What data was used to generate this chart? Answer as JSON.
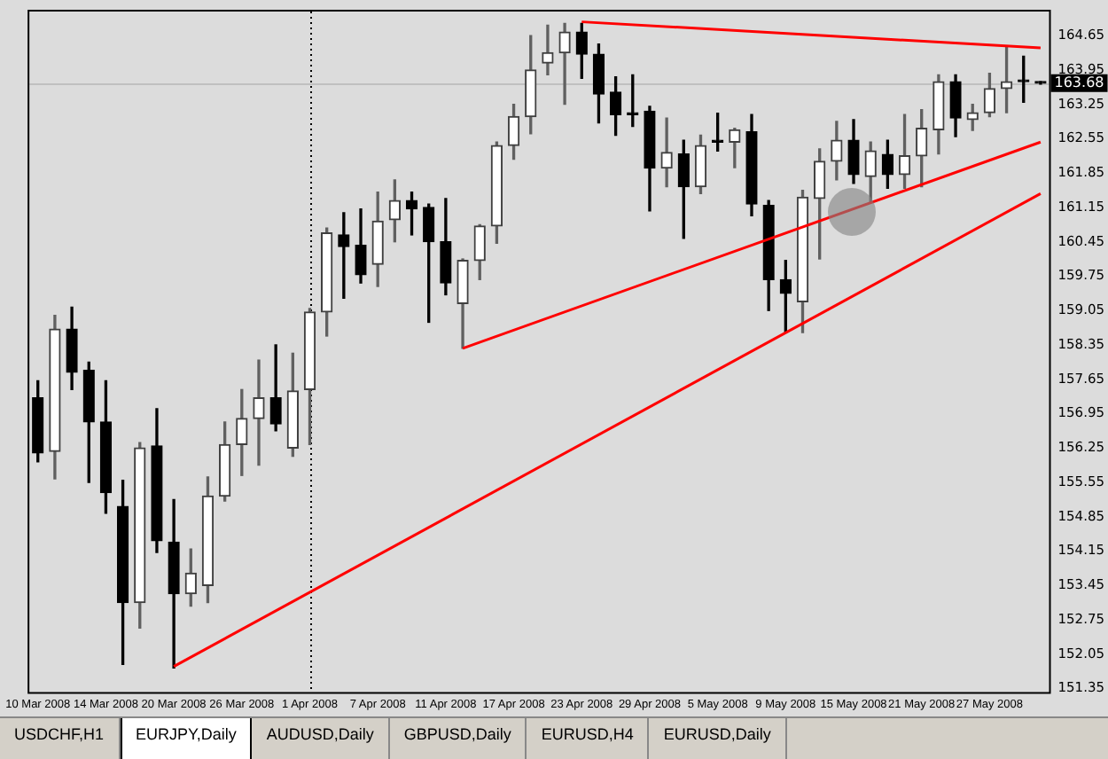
{
  "chart_data": {
    "type": "candlestick",
    "categories": [
      "10 Mar 2008",
      null,
      null,
      null,
      "14 Mar 2008",
      null,
      null,
      null,
      "20 Mar 2008",
      null,
      null,
      null,
      "26 Mar 2008",
      null,
      null,
      null,
      "1 Apr 2008",
      null,
      null,
      null,
      "7 Apr 2008",
      null,
      null,
      null,
      "11 Apr 2008",
      null,
      null,
      null,
      "17 Apr 2008",
      null,
      null,
      null,
      "23 Apr 2008",
      null,
      null,
      null,
      "29 Apr 2008",
      null,
      null,
      null,
      "5 May 2008",
      null,
      null,
      null,
      "9 May 2008",
      null,
      null,
      null,
      "15 May 2008",
      null,
      null,
      null,
      "21 May 2008",
      null,
      null,
      null,
      "27 May 2008",
      null,
      null,
      null
    ],
    "ohlc": [
      [
        157.27,
        157.62,
        155.97,
        156.15
      ],
      [
        156.18,
        158.95,
        155.62,
        158.67
      ],
      [
        158.67,
        159.12,
        157.44,
        157.79
      ],
      [
        157.83,
        158.0,
        155.55,
        156.78
      ],
      [
        156.78,
        157.62,
        154.92,
        155.34
      ],
      [
        155.06,
        155.59,
        151.84,
        153.1
      ],
      [
        153.1,
        156.36,
        152.58,
        156.25
      ],
      [
        156.29,
        157.05,
        154.12,
        154.36
      ],
      [
        154.33,
        155.2,
        151.77,
        153.28
      ],
      [
        153.28,
        154.19,
        153.03,
        153.7
      ],
      [
        153.45,
        155.66,
        153.1,
        155.27
      ],
      [
        155.27,
        156.78,
        155.17,
        156.32
      ],
      [
        156.32,
        157.44,
        155.69,
        156.85
      ],
      [
        156.85,
        158.04,
        155.9,
        157.27
      ],
      [
        157.27,
        158.35,
        156.6,
        156.74
      ],
      [
        156.25,
        158.18,
        156.08,
        157.41
      ],
      [
        157.44,
        159.09,
        156.32,
        159.02
      ],
      [
        159.02,
        160.73,
        158.53,
        160.63
      ],
      [
        160.59,
        161.04,
        159.3,
        160.35
      ],
      [
        160.38,
        161.12,
        159.61,
        159.78
      ],
      [
        159.99,
        161.46,
        159.54,
        160.87
      ],
      [
        160.9,
        161.71,
        160.45,
        161.29
      ],
      [
        161.29,
        161.46,
        160.59,
        161.12
      ],
      [
        161.15,
        161.22,
        158.81,
        160.45
      ],
      [
        160.45,
        161.33,
        159.37,
        159.61
      ],
      [
        159.19,
        160.1,
        158.28,
        160.07
      ],
      [
        160.07,
        160.8,
        159.68,
        160.77
      ],
      [
        160.77,
        162.48,
        160.42,
        162.41
      ],
      [
        162.41,
        163.25,
        162.13,
        163.0
      ],
      [
        163.0,
        164.65,
        162.65,
        163.95
      ],
      [
        164.09,
        164.86,
        163.85,
        164.3
      ],
      [
        164.3,
        164.9,
        163.25,
        164.72
      ],
      [
        164.72,
        164.9,
        163.78,
        164.27
      ],
      [
        164.27,
        164.48,
        162.87,
        163.46
      ],
      [
        163.5,
        163.81,
        162.62,
        163.04
      ],
      [
        163.04,
        163.85,
        162.8,
        163.04
      ],
      [
        163.11,
        163.21,
        161.08,
        161.95
      ],
      [
        161.95,
        162.97,
        161.57,
        162.27
      ],
      [
        162.24,
        162.52,
        160.52,
        161.57
      ],
      [
        161.57,
        162.62,
        161.43,
        162.41
      ],
      [
        162.48,
        163.07,
        162.3,
        162.48
      ],
      [
        162.48,
        162.76,
        161.96,
        162.73
      ],
      [
        162.69,
        163.04,
        160.98,
        161.22
      ],
      [
        161.19,
        161.29,
        159.05,
        159.68
      ],
      [
        159.68,
        160.07,
        158.6,
        159.4
      ],
      [
        159.23,
        161.5,
        158.6,
        161.36
      ],
      [
        161.33,
        162.34,
        160.1,
        162.09
      ],
      [
        162.09,
        162.9,
        161.71,
        162.52
      ],
      [
        162.52,
        162.94,
        161.64,
        161.82
      ],
      [
        161.78,
        162.48,
        161.26,
        162.3
      ],
      [
        162.23,
        162.52,
        161.54,
        161.82
      ],
      [
        161.82,
        163.04,
        161.54,
        162.2
      ],
      [
        162.2,
        163.14,
        161.57,
        162.76
      ],
      [
        162.73,
        163.85,
        162.24,
        163.71
      ],
      [
        163.71,
        163.85,
        162.59,
        162.97
      ],
      [
        162.94,
        163.25,
        162.72,
        163.08
      ],
      [
        163.08,
        163.88,
        163.0,
        163.57
      ],
      [
        163.57,
        164.44,
        163.08,
        163.71
      ],
      [
        163.71,
        164.23,
        163.29,
        163.71
      ],
      [
        163.68,
        163.71,
        163.66,
        163.68
      ]
    ],
    "series": [
      {
        "type": "line",
        "color": "#ff0000",
        "values": [
          null,
          null,
          null,
          null,
          null,
          null,
          null,
          null,
          151.8,
          null,
          null,
          null,
          null,
          null,
          null,
          null,
          null,
          null,
          null,
          null,
          null,
          null,
          null,
          null,
          null,
          null,
          null,
          null,
          null,
          null,
          null,
          null,
          null,
          null,
          null,
          null,
          null,
          null,
          null,
          null,
          null,
          null,
          null,
          null,
          null,
          null,
          null,
          null,
          null,
          null,
          null,
          null,
          null,
          null,
          null,
          null,
          null,
          null,
          null,
          161.43
        ]
      },
      {
        "type": "line",
        "color": "#ff0000",
        "values": [
          null,
          null,
          null,
          null,
          null,
          null,
          null,
          null,
          null,
          null,
          null,
          null,
          null,
          null,
          null,
          null,
          null,
          null,
          null,
          null,
          null,
          null,
          null,
          null,
          null,
          158.28,
          null,
          null,
          null,
          null,
          null,
          null,
          null,
          null,
          null,
          null,
          null,
          null,
          null,
          null,
          null,
          null,
          null,
          null,
          null,
          null,
          null,
          null,
          null,
          null,
          null,
          null,
          null,
          null,
          null,
          null,
          null,
          null,
          null,
          162.48
        ]
      },
      {
        "type": "line",
        "color": "#ff0000",
        "values": [
          null,
          null,
          null,
          null,
          null,
          null,
          null,
          null,
          null,
          null,
          null,
          null,
          null,
          null,
          null,
          null,
          null,
          null,
          null,
          null,
          null,
          null,
          null,
          null,
          null,
          null,
          null,
          null,
          null,
          null,
          null,
          null,
          164.93,
          null,
          null,
          null,
          null,
          null,
          null,
          null,
          null,
          null,
          null,
          null,
          null,
          null,
          null,
          null,
          null,
          null,
          null,
          null,
          null,
          null,
          null,
          null,
          null,
          null,
          null,
          164.4
        ]
      }
    ],
    "ylim": [
      151.28,
      165.14
    ],
    "yticks": [
      151.35,
      152.05,
      152.75,
      153.45,
      154.15,
      154.85,
      155.55,
      156.25,
      156.95,
      157.65,
      158.35,
      159.05,
      159.75,
      160.45,
      161.15,
      161.85,
      162.55,
      163.25,
      163.95,
      164.65
    ],
    "ref_lines": [
      {
        "axis": "y",
        "value": 163.68,
        "label": "163.68",
        "color": "#c0c0c0"
      },
      {
        "axis": "x",
        "value": "1 Apr 2008",
        "color": "#000000",
        "line_style": "dotted"
      }
    ],
    "annotations": [
      "USDCHF,H1",
      "EURJPY,Daily",
      "AUDUSD,Daily",
      "GBPUSD,Daily",
      "EURUSD,H4",
      "EURUSD,Daily"
    ],
    "legend": false
  }
}
